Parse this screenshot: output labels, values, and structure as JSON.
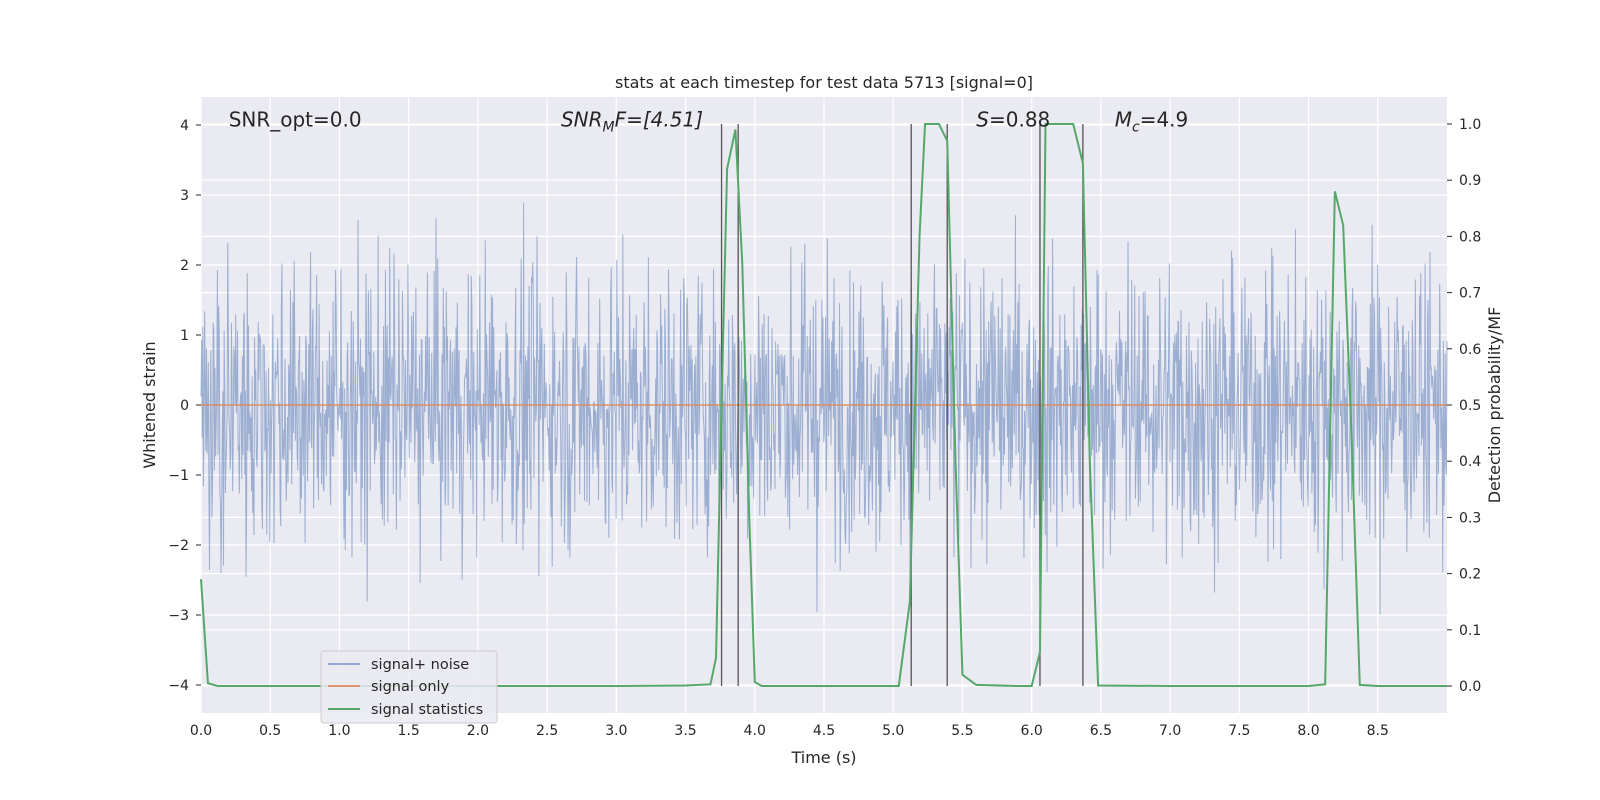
{
  "chart_data": {
    "type": "line",
    "title": "stats at each timestep for test data 5713 [signal=0]",
    "xlabel": "Time (s)",
    "ylabel_left": "Whitened strain",
    "ylabel_right": "Detection probability/MF",
    "xlim": [
      0.0,
      9.0
    ],
    "ylim_left": [
      -4.4,
      4.4
    ],
    "ylim_right": [
      -0.048,
      1.048
    ],
    "x_ticks": [
      "0.0",
      "0.5",
      "1.0",
      "1.5",
      "2.0",
      "2.5",
      "3.0",
      "3.5",
      "4.0",
      "4.5",
      "5.0",
      "5.5",
      "6.0",
      "6.5",
      "7.0",
      "7.5",
      "8.0",
      "8.5"
    ],
    "y_ticks_left": [
      "4",
      "3",
      "2",
      "1",
      "0",
      "−1",
      "−2",
      "−3",
      "−4"
    ],
    "y_ticks_right": [
      "1.0",
      "0.9",
      "0.8",
      "0.7",
      "0.6",
      "0.5",
      "0.4",
      "0.3",
      "0.2",
      "0.1",
      "0.0"
    ],
    "grid": true,
    "annotations": [
      {
        "text": "SNR_opt=0.0",
        "x": 0.2,
        "y": 4.05,
        "italic": false
      },
      {
        "text": "SNRₘF=[4.51]",
        "x": 2.6,
        "y": 4.05,
        "italic": true,
        "main": "SNR",
        "sub": "M",
        "rest": "F=[4.51]"
      },
      {
        "text": "S=0.88",
        "x": 5.6,
        "y": 4.05,
        "italic": false,
        "main": "S",
        "rest": "=0.88"
      },
      {
        "text": "Mᴄ=4.9",
        "x": 6.6,
        "y": 4.05,
        "italic": false,
        "main": "M",
        "sub": "c",
        "rest": "=4.9"
      }
    ],
    "vlines": [
      3.76,
      3.88,
      5.13,
      5.39,
      6.06,
      6.37
    ],
    "legend": {
      "position": "lower-left",
      "entries": [
        "signal+ noise",
        "signal only",
        "signal statistics"
      ]
    },
    "series": [
      {
        "name": "signal+ noise",
        "axis": "left",
        "color": "#4c72b0",
        "description_kind": "noise",
        "samples": 2048,
        "sigma": 1.0
      },
      {
        "name": "signal only",
        "axis": "left",
        "color": "#dd8452",
        "x": [
          0.0,
          9.0
        ],
        "y": [
          0.0,
          0.0
        ]
      },
      {
        "name": "signal statistics",
        "axis": "right",
        "color": "#55a868",
        "x": [
          0.0,
          0.05,
          0.12,
          0.2,
          1.0,
          2.0,
          3.0,
          3.5,
          3.68,
          3.72,
          3.76,
          3.8,
          3.86,
          3.91,
          3.96,
          4.0,
          4.05,
          4.5,
          4.9,
          5.04,
          5.12,
          5.19,
          5.23,
          5.27,
          5.33,
          5.39,
          5.45,
          5.5,
          5.6,
          5.9,
          6.0,
          6.06,
          6.1,
          6.14,
          6.3,
          6.37,
          6.42,
          6.48,
          7.0,
          8.0,
          8.12,
          8.19,
          8.25,
          8.31,
          8.37,
          8.5,
          9.0
        ],
        "y": [
          0.19,
          0.005,
          0.0,
          0.0,
          0.0,
          0.0,
          0.0,
          0.001,
          0.003,
          0.05,
          0.5,
          0.92,
          0.99,
          0.75,
          0.3,
          0.007,
          0.0,
          0.0,
          0.0,
          0.0,
          0.15,
          0.8,
          1.0,
          1.0,
          1.0,
          0.97,
          0.4,
          0.02,
          0.002,
          0.0,
          0.0,
          0.06,
          1.0,
          1.0,
          1.0,
          0.93,
          0.4,
          0.001,
          0.0,
          0.0,
          0.003,
          0.88,
          0.82,
          0.45,
          0.002,
          0.0,
          0.0
        ]
      }
    ]
  }
}
